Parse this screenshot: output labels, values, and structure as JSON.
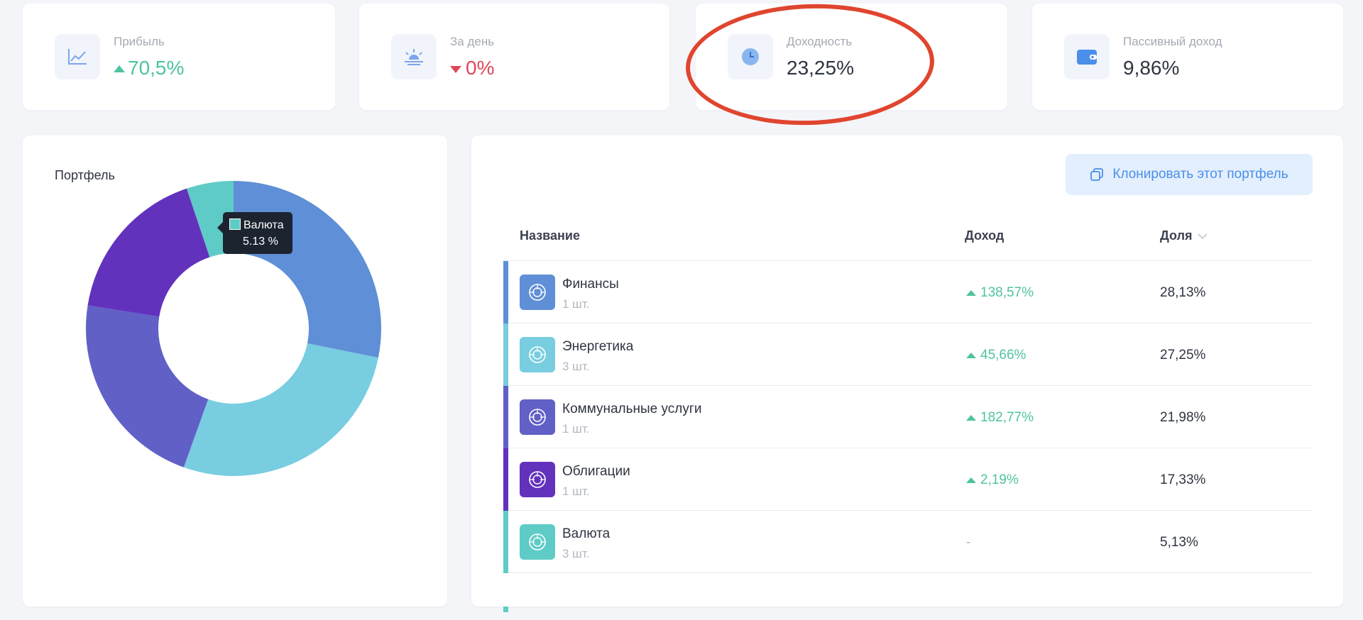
{
  "stats": [
    {
      "label": "Прибыль",
      "value": "70,5%",
      "trend": "up",
      "icon": "line-chart-icon"
    },
    {
      "label": "За день",
      "value": "0%",
      "trend": "down",
      "icon": "sunrise-icon"
    },
    {
      "label": "Доходность",
      "value": "23,25%",
      "trend": "none",
      "icon": "clock-icon"
    },
    {
      "label": "Пассивный доход",
      "value": "9,86%",
      "trend": "none",
      "icon": "wallet-icon"
    }
  ],
  "portfolio": {
    "title": "Портфель",
    "tooltip": {
      "label": "Валюта",
      "value": "5.13 %"
    }
  },
  "chart_data": {
    "type": "pie",
    "labels": [
      "Финансы",
      "Энергетика",
      "Коммунальные услуги",
      "Облигации",
      "Валюта"
    ],
    "values": [
      28.13,
      27.25,
      21.98,
      17.33,
      5.13
    ],
    "colors": [
      "#5f8fd6",
      "#78cde0",
      "#6060c6",
      "#6232bd",
      "#5fcbc6"
    ],
    "donut": true
  },
  "table": {
    "clone_button": "Клонировать этот портфель",
    "headers": {
      "name": "Название",
      "income": "Доход",
      "share": "Доля"
    },
    "rows": [
      {
        "name": "Финансы",
        "count": "1 шт.",
        "income": "138,57%",
        "income_trend": "up",
        "share": "28,13%",
        "color": "#5f8fd6"
      },
      {
        "name": "Энергетика",
        "count": "3 шт.",
        "income": "45,66%",
        "income_trend": "up",
        "share": "27,25%",
        "color": "#78cde0"
      },
      {
        "name": "Коммунальные услуги",
        "count": "1 шт.",
        "income": "182,77%",
        "income_trend": "up",
        "share": "21,98%",
        "color": "#6060c6"
      },
      {
        "name": "Облигации",
        "count": "1 шт.",
        "income": "2,19%",
        "income_trend": "up",
        "share": "17,33%",
        "color": "#6232bd"
      },
      {
        "name": "Валюта",
        "count": "3 шт.",
        "income": "-",
        "income_trend": "none",
        "share": "5,13%",
        "color": "#5fcbc6"
      }
    ]
  },
  "colors": {
    "up": "#4fc3a1",
    "down": "#e2465a",
    "accent": "#4a8fea",
    "highlight": "#e0452f"
  }
}
